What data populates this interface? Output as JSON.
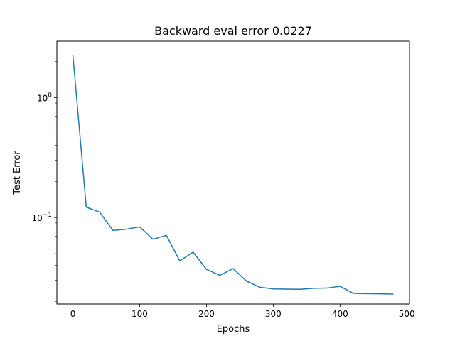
{
  "chart_data": {
    "type": "line",
    "title": "Backward eval error 0.0227",
    "xlabel": "Epochs",
    "ylabel": "Test Error",
    "xlim": [
      -24,
      504
    ],
    "ylim": [
      0.019,
      2.95
    ],
    "yscale": "log",
    "grid": false,
    "line_color": "#1f77b4",
    "x_ticks": [
      0,
      100,
      200,
      300,
      400,
      500
    ],
    "x_tick_labels": [
      "0",
      "100",
      "200",
      "300",
      "400",
      "500"
    ],
    "y_major_ticks": [
      0.1,
      1
    ],
    "y_tick_labels": [
      {
        "value": 0.1,
        "base": "10",
        "exp": "−1"
      },
      {
        "value": 1,
        "base": "10",
        "exp": "0"
      }
    ],
    "y_minor_ticks": [
      0.02,
      0.03,
      0.04,
      0.05,
      0.06,
      0.07,
      0.08,
      0.09,
      0.2,
      0.3,
      0.4,
      0.5,
      0.6,
      0.7,
      0.8,
      0.9,
      2
    ],
    "series": [
      {
        "x": [
          0,
          20,
          40,
          60,
          80,
          100,
          120,
          140,
          160,
          180,
          200,
          220,
          240,
          260,
          280,
          300,
          320,
          340,
          360,
          380,
          400,
          420,
          440,
          460,
          480
        ],
        "y": [
          2.25,
          0.122,
          0.111,
          0.078,
          0.08,
          0.0835,
          0.066,
          0.071,
          0.0435,
          0.0515,
          0.037,
          0.033,
          0.0375,
          0.0295,
          0.0262,
          0.0254,
          0.0253,
          0.0252,
          0.0257,
          0.0258,
          0.0267,
          0.0233,
          0.0232,
          0.0231,
          0.023
        ]
      }
    ]
  }
}
